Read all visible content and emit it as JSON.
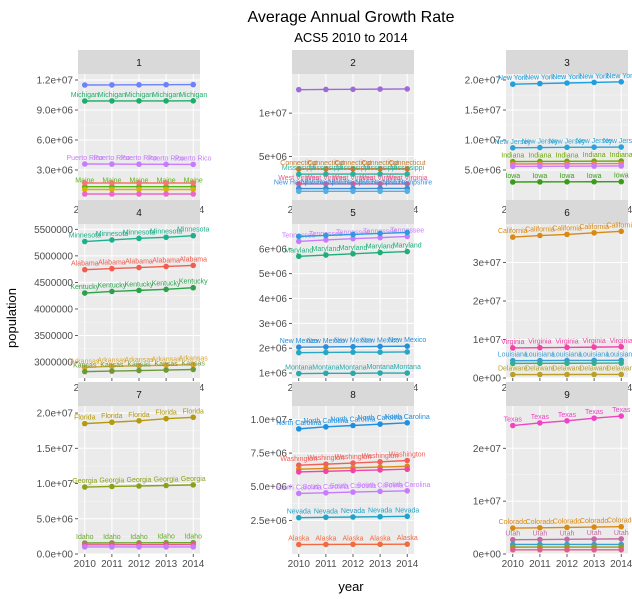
{
  "chart_data": {
    "type": "line",
    "title": "Average Annual Growth Rate",
    "subtitle": "ACS5 2010 to 2014",
    "xlabel": "year",
    "ylabel": "population",
    "x": [
      2010,
      2011,
      2012,
      2013,
      2014
    ],
    "x_tick_labels": [
      "2010",
      "2011",
      "2012",
      "2013",
      "2014"
    ],
    "panels": [
      {
        "strip": "1",
        "ylim": [
          0,
          12600000
        ],
        "yticks": [
          3000000,
          6000000,
          9000000,
          12000000
        ],
        "ytick_labels": [
          "3.0e+06",
          "6.0e+06",
          "9.0e+06",
          "1.2e+07"
        ],
        "series": [
          {
            "name": "",
            "color": "#6a82fb",
            "values": [
              11500000,
              11510000,
              11520000,
              11530000,
              11540000
            ],
            "labels": false
          },
          {
            "name": "Michigan",
            "color": "#1eae6a",
            "values": [
              9900000,
              9910000,
              9910000,
              9910000,
              9920000
            ],
            "labels": true
          },
          {
            "name": "Puerto Rico",
            "color": "#c77cff",
            "values": [
              3600000,
              3590000,
              3580000,
              3570000,
              3560000
            ],
            "labels": true
          },
          {
            "name": "Maine",
            "color": "#56b417",
            "values": [
              1330000,
              1330000,
              1330000,
              1330000,
              1330000
            ],
            "labels": true
          },
          {
            "name": "",
            "color": "#f8766d",
            "values": [
              1700000,
              1700000,
              1700000,
              1700000,
              1700000
            ],
            "labels": false
          },
          {
            "name": "",
            "color": "#d8b10a",
            "values": [
              1050000,
              1050000,
              1050000,
              1050000,
              1050000
            ],
            "labels": false
          },
          {
            "name": "",
            "color": "#f066c8",
            "values": [
              600000,
              600000,
              600000,
              600000,
              600000
            ],
            "labels": false
          }
        ]
      },
      {
        "strip": "2",
        "ylim": [
          0,
          14500000
        ],
        "yticks": [
          5000000,
          10000000
        ],
        "ytick_labels": [
          "5e+06",
          "1e+07"
        ],
        "series": [
          {
            "name": "",
            "color": "#9f6bd6",
            "values": [
              12700000,
              12720000,
              12740000,
              12760000,
              12780000
            ],
            "labels": false
          },
          {
            "name": "Connecticut",
            "color": "#c77c2e",
            "values": [
              3570000,
              3580000,
              3590000,
              3590000,
              3590000
            ],
            "labels": true
          },
          {
            "name": "Mississippi",
            "color": "#2bb39f",
            "values": [
              2970000,
              2980000,
              2990000,
              2990000,
              2990000
            ],
            "labels": true
          },
          {
            "name": "West Virginia",
            "color": "#e85a8a",
            "values": [
              1850000,
              1850000,
              1850000,
              1850000,
              1850000
            ],
            "labels": true
          },
          {
            "name": "New Hampshire",
            "color": "#3d8bd9",
            "values": [
              1320000,
              1320000,
              1320000,
              1330000,
              1330000
            ],
            "labels": true
          },
          {
            "name": "",
            "color": "#4fb1e5",
            "values": [
              1000000,
              1000000,
              1000000,
              1000000,
              1000000
            ],
            "labels": false
          }
        ]
      },
      {
        "strip": "3",
        "ylim": [
          0,
          21000000
        ],
        "yticks": [
          5000000,
          10000000,
          15000000,
          20000000
        ],
        "ytick_labels": [
          "5.0e+06",
          "1.0e+07",
          "1.5e+07",
          "2.0e+07"
        ],
        "series": [
          {
            "name": "New York",
            "color": "#1e9fe0",
            "values": [
              19300000,
              19400000,
              19500000,
              19600000,
              19700000
            ],
            "labels": true
          },
          {
            "name": "New Jersey",
            "color": "#2aa3d6",
            "values": [
              8700000,
              8740000,
              8780000,
              8800000,
              8830000
            ],
            "labels": true
          },
          {
            "name": "Indiana",
            "color": "#6da600",
            "values": [
              6400000,
              6420000,
              6440000,
              6470000,
              6490000
            ],
            "labels": true
          },
          {
            "name": "",
            "color": "#f8766d",
            "values": [
              6000000,
              6020000,
              6040000,
              6060000,
              6080000
            ],
            "labels": false
          },
          {
            "name": "",
            "color": "#c77cff",
            "values": [
              5600000,
              5620000,
              5640000,
              5650000,
              5670000
            ],
            "labels": false
          },
          {
            "name": "Iowa",
            "color": "#3a9d1a",
            "values": [
              3000000,
              3020000,
              3030000,
              3040000,
              3050000
            ],
            "labels": true
          }
        ]
      },
      {
        "strip": "4",
        "ylim": [
          2700000,
          5600000
        ],
        "yticks": [
          3000000,
          3500000,
          4000000,
          4500000,
          5000000,
          5500000
        ],
        "ytick_labels": [
          "3000000",
          "3500000",
          "4000000",
          "4500000",
          "5000000",
          "5500000"
        ],
        "series": [
          {
            "name": "Minnesota",
            "color": "#1bb08e",
            "values": [
              5270000,
              5300000,
              5330000,
              5350000,
              5380000
            ],
            "labels": true
          },
          {
            "name": "Alabama",
            "color": "#f35d4f",
            "values": [
              4740000,
              4760000,
              4780000,
              4800000,
              4820000
            ],
            "labels": true
          },
          {
            "name": "Kentucky",
            "color": "#2aa24a",
            "values": [
              4300000,
              4330000,
              4350000,
              4370000,
              4400000
            ],
            "labels": true
          },
          {
            "name": "Arkansas",
            "color": "#d9a42a",
            "values": [
              2900000,
              2920000,
              2930000,
              2940000,
              2950000
            ],
            "labels": true
          },
          {
            "name": "Kansas",
            "color": "#6b9a3a",
            "values": [
              2820000,
              2830000,
              2840000,
              2850000,
              2860000
            ],
            "labels": true
          }
        ]
      },
      {
        "strip": "5",
        "ylim": [
          800000,
          7000000
        ],
        "yticks": [
          1000000,
          2000000,
          3000000,
          4000000,
          5000000,
          6000000
        ],
        "ytick_labels": [
          "1e+06",
          "2e+06",
          "3e+06",
          "4e+06",
          "5e+06",
          "6e+06"
        ],
        "series": [
          {
            "name": "Tennessee",
            "color": "#c77cff",
            "values": [
              6300000,
              6360000,
              6410000,
              6450000,
              6500000
            ],
            "labels": true
          },
          {
            "name": "",
            "color": "#2e9be0",
            "values": [
              6500000,
              6540000,
              6580000,
              6620000,
              6660000
            ],
            "labels": false
          },
          {
            "name": "Maryland",
            "color": "#1fae7a",
            "values": [
              5700000,
              5750000,
              5800000,
              5850000,
              5890000
            ],
            "labels": true
          },
          {
            "name": "New Mexico",
            "color": "#2a8fd6",
            "values": [
              2040000,
              2050000,
              2060000,
              2070000,
              2080000
            ],
            "labels": true
          },
          {
            "name": "",
            "color": "#24a8c4",
            "values": [
              1820000,
              1830000,
              1840000,
              1840000,
              1850000
            ],
            "labels": false
          },
          {
            "name": "Montana",
            "color": "#29a8ad",
            "values": [
              980000,
              990000,
              990000,
              1000000,
              1000000
            ],
            "labels": true
          }
        ]
      },
      {
        "strip": "6",
        "ylim": [
          0,
          40000000
        ],
        "yticks": [
          0,
          10000000,
          20000000,
          30000000
        ],
        "ytick_labels": [
          "0e+00",
          "1e+07",
          "2e+07",
          "3e+07"
        ],
        "series": [
          {
            "name": "California",
            "color": "#d98a12",
            "values": [
              36600000,
              37000000,
              37300000,
              37700000,
              38100000
            ],
            "labels": true
          },
          {
            "name": "Virginia",
            "color": "#f044a8",
            "values": [
              7800000,
              7880000,
              7950000,
              8020000,
              8100000
            ],
            "labels": true
          },
          {
            "name": "Louisiana",
            "color": "#3a9dd6",
            "values": [
              4500000,
              4530000,
              4550000,
              4570000,
              4600000
            ],
            "labels": true
          },
          {
            "name": "",
            "color": "#31b08a",
            "values": [
              3800000,
              3820000,
              3830000,
              3850000,
              3870000
            ],
            "labels": false
          },
          {
            "name": "Delaware",
            "color": "#b8a02a",
            "values": [
              890000,
              900000,
              910000,
              920000,
              930000
            ],
            "labels": true
          }
        ]
      },
      {
        "strip": "7",
        "ylim": [
          0,
          21000000
        ],
        "yticks": [
          0,
          5000000,
          10000000,
          15000000,
          20000000
        ],
        "ytick_labels": [
          "0.0e+00",
          "5.0e+06",
          "1.0e+07",
          "1.5e+07",
          "2.0e+07"
        ],
        "series": [
          {
            "name": "Florida",
            "color": "#b49a10",
            "values": [
              18500000,
              18700000,
              18900000,
              19200000,
              19400000
            ],
            "labels": true
          },
          {
            "name": "Georgia",
            "color": "#8ca01a",
            "values": [
              9500000,
              9580000,
              9650000,
              9720000,
              9810000
            ],
            "labels": true
          },
          {
            "name": "Idaho",
            "color": "#6aa82c",
            "values": [
              1560000,
              1580000,
              1590000,
              1600000,
              1610000
            ],
            "labels": true
          },
          {
            "name": "",
            "color": "#e85a8a",
            "values": [
              1300000,
              1310000,
              1320000,
              1330000,
              1340000
            ],
            "labels": false
          },
          {
            "name": "",
            "color": "#c77cff",
            "values": [
              1000000,
              1000000,
              1000000,
              1000000,
              1000000
            ],
            "labels": false
          }
        ]
      },
      {
        "strip": "8",
        "ylim": [
          0,
          11000000
        ],
        "yticks": [
          2500000,
          5000000,
          7500000,
          10000000
        ],
        "ytick_labels": [
          "2.5e+06",
          "5.0e+06",
          "7.5e+06",
          "1.0e+07"
        ],
        "series": [
          {
            "name": "North Carolina",
            "color": "#1f8fe0",
            "values": [
              9300000,
              9450000,
              9550000,
              9650000,
              9750000
            ],
            "labels": true
          },
          {
            "name": "Washington",
            "color": "#f2605a",
            "values": [
              6600000,
              6680000,
              6760000,
              6850000,
              6950000
            ],
            "labels": true
          },
          {
            "name": "",
            "color": "#d98a12",
            "values": [
              6300000,
              6360000,
              6410000,
              6460000,
              6520000
            ],
            "labels": false
          },
          {
            "name": "",
            "color": "#f044a8",
            "values": [
              6100000,
              6150000,
              6200000,
              6250000,
              6300000
            ],
            "labels": false
          },
          {
            "name": "South Carolina",
            "color": "#c77cff",
            "values": [
              4500000,
              4550000,
              4600000,
              4650000,
              4700000
            ],
            "labels": true
          },
          {
            "name": "Nevada",
            "color": "#1fa3c8",
            "values": [
              2700000,
              2730000,
              2750000,
              2770000,
              2800000
            ],
            "labels": true
          },
          {
            "name": "Alaska",
            "color": "#f26b40",
            "values": [
              700000,
              710000,
              720000,
              720000,
              730000
            ],
            "labels": true
          }
        ]
      },
      {
        "strip": "9",
        "ylim": [
          0,
          28000000
        ],
        "yticks": [
          0,
          10000000,
          20000000
        ],
        "ytick_labels": [
          "0e+00",
          "1e+07",
          "2e+07"
        ],
        "series": [
          {
            "name": "Texas",
            "color": "#f044c4",
            "values": [
              24300000,
              24800000,
              25200000,
              25700000,
              26100000
            ],
            "labels": true
          },
          {
            "name": "Colorado",
            "color": "#d98a12",
            "values": [
              4900000,
              4960000,
              5020000,
              5090000,
              5160000
            ],
            "labels": true
          },
          {
            "name": "Utah",
            "color": "#c46aa0",
            "values": [
              2700000,
              2740000,
              2780000,
              2820000,
              2860000
            ],
            "labels": true
          },
          {
            "name": "",
            "color": "#3a9dd6",
            "values": [
              1800000,
              1800000,
              1800000,
              1800000,
              1800000
            ],
            "labels": false
          },
          {
            "name": "",
            "color": "#8ca01a",
            "values": [
              1300000,
              1310000,
              1310000,
              1320000,
              1320000
            ],
            "labels": false
          },
          {
            "name": "",
            "color": "#e85a8a",
            "values": [
              800000,
              800000,
              800000,
              800000,
              800000
            ],
            "labels": false
          }
        ]
      }
    ],
    "colors": {
      "panel_bg": "#ebebeb",
      "strip_bg": "#d9d9d9",
      "grid_major": "#ffffff"
    }
  }
}
